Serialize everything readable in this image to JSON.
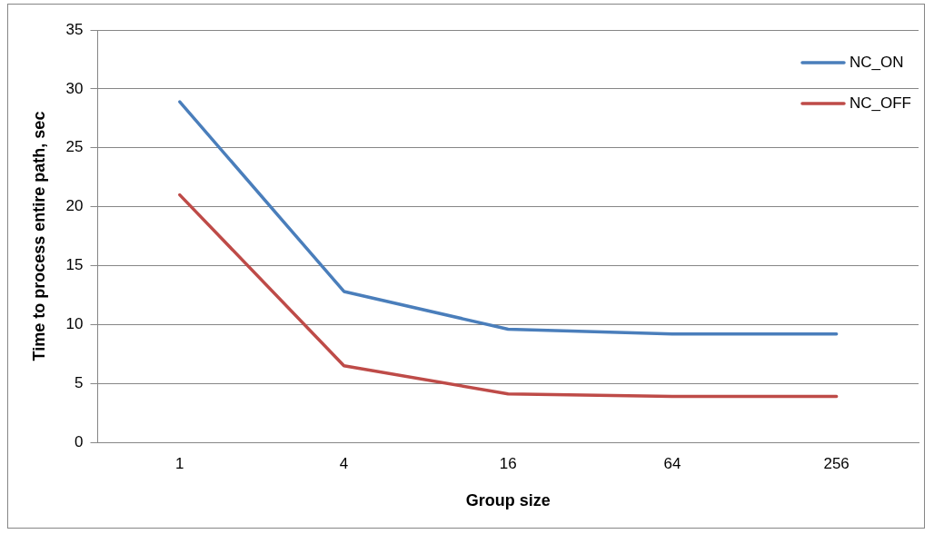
{
  "chart_data": {
    "type": "line",
    "xlabel": "Group size",
    "ylabel": "Time to process entire path, sec",
    "categories": [
      "1",
      "4",
      "16",
      "64",
      "256"
    ],
    "series": [
      {
        "name": "NC_ON",
        "color": "#4a7ebb",
        "values": [
          28.9,
          12.8,
          9.6,
          9.2,
          9.2
        ]
      },
      {
        "name": "NC_OFF",
        "color": "#be4b48",
        "values": [
          21.0,
          6.5,
          4.1,
          3.9,
          3.9
        ]
      }
    ],
    "ylim": [
      0,
      35
    ],
    "yticks": [
      0,
      5,
      10,
      15,
      20,
      25,
      30,
      35
    ],
    "grid": "y",
    "legend": "top right",
    "marker": "none",
    "line_style": "solid"
  }
}
